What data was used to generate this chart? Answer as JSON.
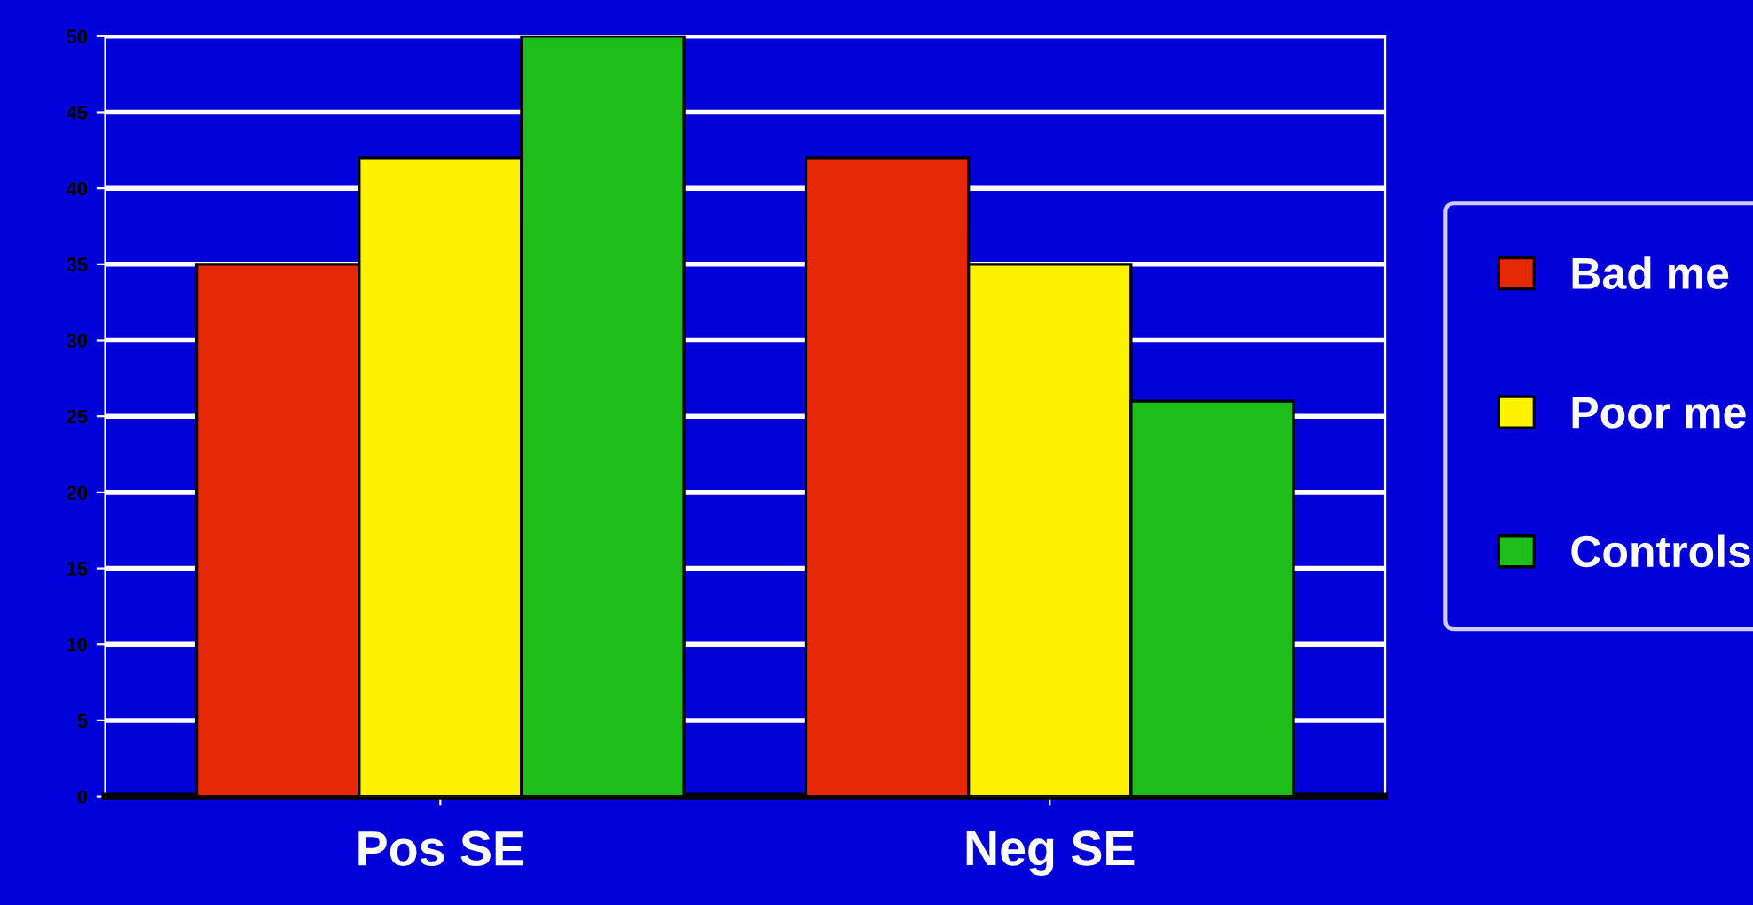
{
  "chart_data": {
    "type": "bar",
    "categories": [
      "Pos SE",
      "Neg SE"
    ],
    "series": [
      {
        "name": "Bad me",
        "color": "#e62804",
        "values": [
          35,
          42
        ]
      },
      {
        "name": "Poor me",
        "color": "#fff200",
        "values": [
          42,
          35
        ]
      },
      {
        "name": "Controls",
        "color": "#1ebe1a",
        "values": [
          50,
          26
        ]
      }
    ],
    "ylim": [
      0,
      50
    ],
    "yticks": [
      0,
      5,
      10,
      15,
      20,
      25,
      30,
      35,
      40,
      45,
      50
    ],
    "grid": "y",
    "legend": "right"
  }
}
